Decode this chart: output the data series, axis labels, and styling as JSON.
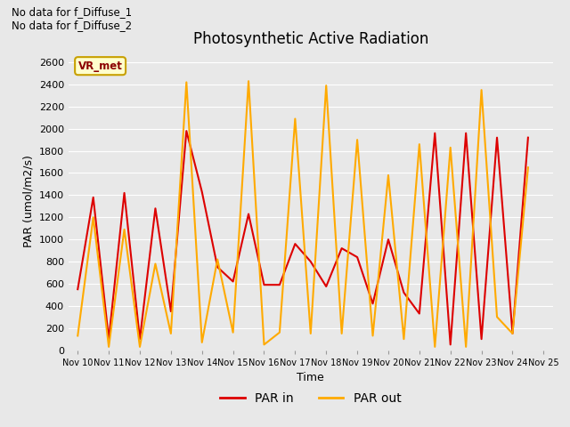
{
  "title": "Photosynthetic Active Radiation",
  "xlabel": "Time",
  "ylabel": "PAR (umol/m2/s)",
  "background_color": "#e8e8e8",
  "plot_bg_color": "#e8e8e8",
  "annotations": [
    "No data for f_Diffuse_1",
    "No data for f_Diffuse_2"
  ],
  "box_label": "VR_met",
  "x_ticks": [
    "Nov 10",
    "Nov 11",
    "Nov 12",
    "Nov 13",
    "Nov 14",
    "Nov 15",
    "Nov 16",
    "Nov 17",
    "Nov 18",
    "Nov 19",
    "Nov 20",
    "Nov 21",
    "Nov 22",
    "Nov 23",
    "Nov 24",
    "Nov 25"
  ],
  "ylim": [
    0,
    2700
  ],
  "yticks": [
    0,
    200,
    400,
    600,
    800,
    1000,
    1200,
    1400,
    1600,
    1800,
    2000,
    2200,
    2400,
    2600
  ],
  "par_in_color": "#dd0000",
  "par_out_color": "#ffaa00",
  "legend_par_in": "PAR in",
  "legend_par_out": "PAR out",
  "par_in_x": [
    0,
    0.5,
    1.0,
    1.5,
    2.0,
    2.5,
    3.0,
    3.5,
    4.0,
    4.5,
    5.0,
    5.5,
    6.0,
    6.5,
    7.0,
    7.5,
    8.0,
    8.5,
    9.0,
    9.5,
    10.0,
    10.5,
    11.0,
    11.5,
    12.0,
    12.5,
    13.0,
    13.5,
    14.0,
    14.5
  ],
  "par_in_y": [
    550,
    1380,
    100,
    1420,
    100,
    1280,
    350,
    1980,
    1430,
    750,
    620,
    1230,
    590,
    590,
    960,
    800,
    575,
    920,
    840,
    420,
    1000,
    520,
    330,
    1960,
    50,
    1960,
    100,
    1920,
    150,
    1920
  ],
  "par_out_x": [
    0,
    0.5,
    1.0,
    1.5,
    2.0,
    2.5,
    3.0,
    3.5,
    4.0,
    4.5,
    5.0,
    5.5,
    6.0,
    6.5,
    7.0,
    7.5,
    8.0,
    8.5,
    9.0,
    9.5,
    10.0,
    10.5,
    11.0,
    11.5,
    12.0,
    12.5,
    13.0,
    13.5,
    14.0,
    14.5
  ],
  "par_out_y": [
    130,
    1200,
    30,
    1090,
    30,
    780,
    150,
    2420,
    70,
    820,
    160,
    2430,
    50,
    160,
    2090,
    150,
    2390,
    150,
    1900,
    130,
    1580,
    100,
    1860,
    30,
    1830,
    30,
    2350,
    300,
    150,
    1650
  ]
}
